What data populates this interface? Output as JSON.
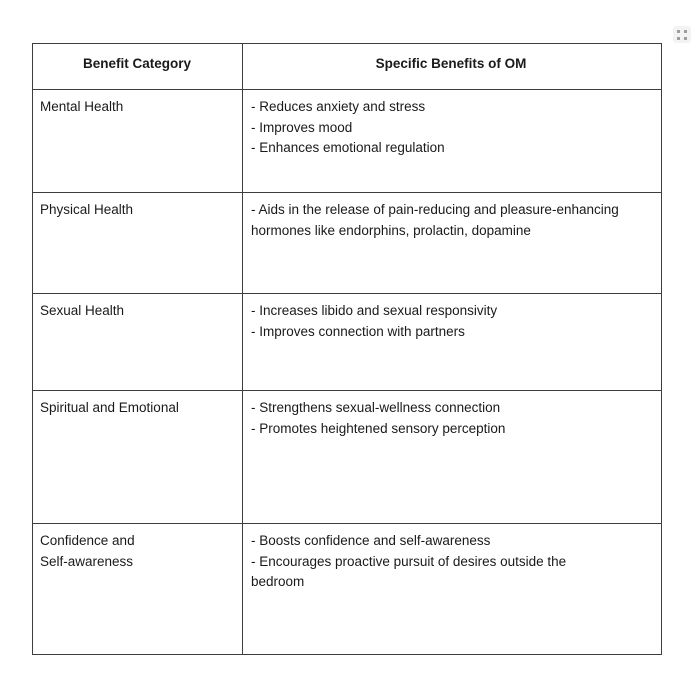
{
  "colors": {
    "border": "#3e3e3e",
    "text": "#1a1a1a",
    "handle_dot": "#9c9c9c",
    "handle_bg": "#f3f3f3"
  },
  "icons": {
    "corner_widget": "grid-dots-drag-handle-icon"
  },
  "table": {
    "header": {
      "col1": "Benefit Category",
      "col2": "Specific Benefits of OM"
    },
    "rows": [
      {
        "category_lines": [
          "Mental Health"
        ],
        "benefit_lines": [
          "- Reduces anxiety and stress",
          "- Improves mood",
          "- Enhances emotional regulation"
        ]
      },
      {
        "category_lines": [
          "Physical Health"
        ],
        "benefit_lines": [
          "- Aids in the release of pain-reducing and pleasure-enhancing",
          "hormones like endorphins, prolactin, dopamine"
        ]
      },
      {
        "category_lines": [
          "Sexual Health"
        ],
        "benefit_lines": [
          "- Increases libido and sexual responsivity",
          "- Improves connection with partners"
        ]
      },
      {
        "category_lines": [
          "Spiritual and Emotional"
        ],
        "benefit_lines": [
          "- Strengthens sexual-wellness connection",
          "- Promotes heightened sensory perception"
        ]
      },
      {
        "category_lines": [
          "Confidence and",
          "Self-awareness"
        ],
        "benefit_lines": [
          "- Boosts confidence and self-awareness",
          "- Encourages proactive pursuit of desires outside the",
          "bedroom"
        ]
      }
    ]
  }
}
